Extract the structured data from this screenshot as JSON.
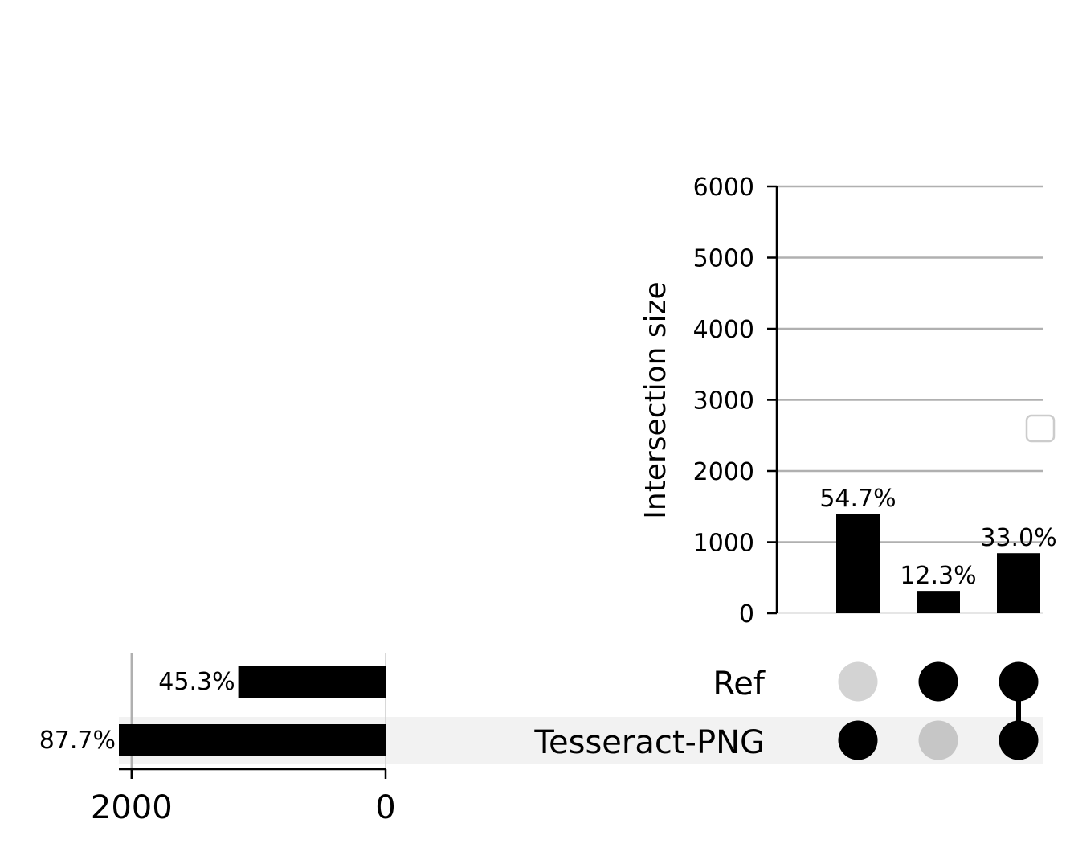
{
  "chart_data": {
    "type": "bar",
    "variant": "upset",
    "sets": [
      "Ref",
      "Tesseract-PNG"
    ],
    "set_sizes": [
      {
        "name": "Ref",
        "value": 1160,
        "percent_label": "45.3%"
      },
      {
        "name": "Tesseract-PNG",
        "value": 2245,
        "percent_label": "87.7%"
      }
    ],
    "set_size_axis": {
      "ticks": [
        "2000",
        "0"
      ],
      "tick_values": [
        2000,
        0
      ],
      "xlim": [
        2100,
        0
      ],
      "direction": "reversed"
    },
    "intersections": [
      {
        "members": [
          "Tesseract-PNG"
        ],
        "value": 1400,
        "percent_label": "54.7%"
      },
      {
        "members": [
          "Ref"
        ],
        "value": 315,
        "percent_label": "12.3%"
      },
      {
        "members": [
          "Ref",
          "Tesseract-PNG"
        ],
        "value": 845,
        "percent_label": "33.0%"
      }
    ],
    "ylabel": "Intersection size",
    "ylim": [
      0,
      6000
    ],
    "yticks": [
      "0",
      "1000",
      "2000",
      "3000",
      "4000",
      "5000",
      "6000"
    ],
    "ytick_values": [
      0,
      1000,
      2000,
      3000,
      4000,
      5000,
      6000
    ],
    "grid": true,
    "legend": "right, empty",
    "colors": {
      "bar": "#000000",
      "dot_active": "#000000",
      "dot_inactive": "#d3d3d3",
      "grid": "#b0b0b0",
      "row_shade": "#f2f2f2"
    }
  }
}
